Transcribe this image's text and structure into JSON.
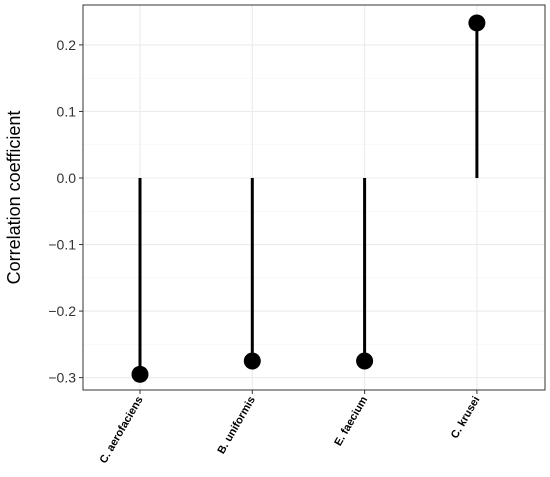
{
  "chart_data": {
    "type": "lollipop",
    "title": "",
    "xlabel": "",
    "ylabel": "Correlation coefficient",
    "categories": [
      "C. aerofaciens",
      "B. uniformis",
      "E. faecium",
      "C. krusei"
    ],
    "values": [
      -0.295,
      -0.275,
      -0.275,
      0.233
    ],
    "ylim": [
      -0.32,
      0.25
    ],
    "yticks": [
      0.2,
      0.1,
      0.0,
      -0.1,
      -0.2,
      -0.3
    ],
    "ytick_labels": [
      "0.2",
      "0.1",
      "0.0",
      "−0.1",
      "−0.2",
      "−0.3"
    ],
    "grid": true,
    "legend": "none",
    "colors": {
      "mark": "#000000",
      "grid_major": "#ebebeb",
      "grid_minor": "#f5f5f5",
      "panel_border": "#333333",
      "background": "#ffffff"
    }
  }
}
